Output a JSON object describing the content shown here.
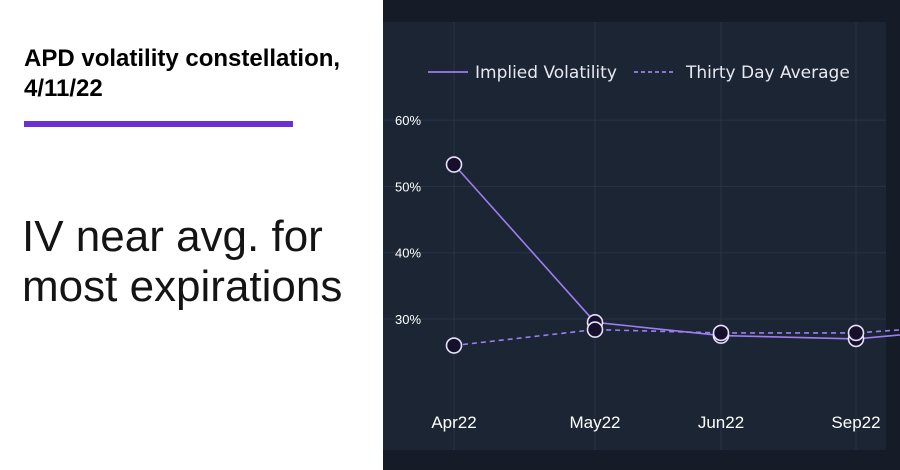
{
  "header": {
    "title": "APD volatility constellation, 4/11/22",
    "subtitle": "IV near avg. for most expirations"
  },
  "colors": {
    "accent": "#6a30d6",
    "panel_bg": "#151c27",
    "plot_bg": "#1c2533",
    "series_line": "#9d7ef0"
  },
  "chart_data": {
    "type": "line",
    "title": "",
    "xlabel": "",
    "ylabel": "",
    "categories": [
      "Apr22",
      "May22",
      "Jun22",
      "Sep22"
    ],
    "ylim": [
      20,
      62
    ],
    "yticks": [
      30,
      40,
      50,
      60
    ],
    "ytick_labels": [
      "30%",
      "40%",
      "50%",
      "60%"
    ],
    "grid": true,
    "legend_position": "top",
    "series": [
      {
        "name": "Implied Volatility",
        "values": [
          53.3,
          29.5,
          27.5,
          27.0
        ],
        "style": "solid"
      },
      {
        "name": "Thirty Day Average",
        "values": [
          26.0,
          28.4,
          27.9,
          27.9
        ],
        "style": "dashed"
      }
    ]
  }
}
